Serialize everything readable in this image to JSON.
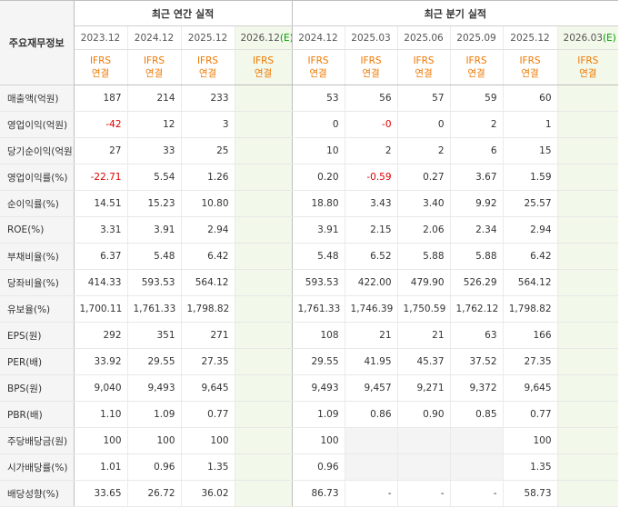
{
  "header": {
    "row_label": "주요재무정보",
    "annual_title": "최근 연간 실적",
    "quarter_title": "최근 분기 실적",
    "annual_periods": [
      "2023.12",
      "2024.12",
      "2025.12",
      "2026.12(E)"
    ],
    "quarter_periods": [
      "2024.12",
      "2025.03",
      "2025.06",
      "2025.09",
      "2025.12",
      "2026.03(E)"
    ],
    "ifrs_line1": "IFRS",
    "ifrs_line2": "연결"
  },
  "rows": [
    {
      "label": "매출액(억원)",
      "values": [
        "187",
        "214",
        "233",
        "",
        "53",
        "56",
        "57",
        "59",
        "60",
        ""
      ]
    },
    {
      "label": "영업이익(억원)",
      "values": [
        "-42",
        "12",
        "3",
        "",
        "0",
        "-0",
        "0",
        "2",
        "1",
        ""
      ]
    },
    {
      "label": "당기순이익(억원)",
      "values": [
        "27",
        "33",
        "25",
        "",
        "10",
        "2",
        "2",
        "6",
        "15",
        ""
      ]
    },
    {
      "label": "영업이익률(%)",
      "values": [
        "-22.71",
        "5.54",
        "1.26",
        "",
        "0.20",
        "-0.59",
        "0.27",
        "3.67",
        "1.59",
        ""
      ]
    },
    {
      "label": "순이익률(%)",
      "values": [
        "14.51",
        "15.23",
        "10.80",
        "",
        "18.80",
        "3.43",
        "3.40",
        "9.92",
        "25.57",
        ""
      ]
    },
    {
      "label": "ROE(%)",
      "values": [
        "3.31",
        "3.91",
        "2.94",
        "",
        "3.91",
        "2.15",
        "2.06",
        "2.34",
        "2.94",
        ""
      ]
    },
    {
      "label": "부채비율(%)",
      "values": [
        "6.37",
        "5.48",
        "6.42",
        "",
        "5.48",
        "6.52",
        "5.88",
        "5.88",
        "6.42",
        ""
      ]
    },
    {
      "label": "당좌비율(%)",
      "values": [
        "414.33",
        "593.53",
        "564.12",
        "",
        "593.53",
        "422.00",
        "479.90",
        "526.29",
        "564.12",
        ""
      ]
    },
    {
      "label": "유보율(%)",
      "values": [
        "1,700.11",
        "1,761.33",
        "1,798.82",
        "",
        "1,761.33",
        "1,746.39",
        "1,750.59",
        "1,762.12",
        "1,798.82",
        ""
      ]
    },
    {
      "label": "EPS(원)",
      "values": [
        "292",
        "351",
        "271",
        "",
        "108",
        "21",
        "21",
        "63",
        "166",
        ""
      ]
    },
    {
      "label": "PER(배)",
      "values": [
        "33.92",
        "29.55",
        "27.35",
        "",
        "29.55",
        "41.95",
        "45.37",
        "37.52",
        "27.35",
        ""
      ]
    },
    {
      "label": "BPS(원)",
      "values": [
        "9,040",
        "9,493",
        "9,645",
        "",
        "9,493",
        "9,457",
        "9,271",
        "9,372",
        "9,645",
        ""
      ]
    },
    {
      "label": "PBR(배)",
      "values": [
        "1.10",
        "1.09",
        "0.77",
        "",
        "1.09",
        "0.86",
        "0.90",
        "0.85",
        "0.77",
        ""
      ]
    },
    {
      "label": "주당배당금(원)",
      "values": [
        "100",
        "100",
        "100",
        "",
        "100",
        "",
        "",
        "",
        "100",
        ""
      ]
    },
    {
      "label": "시가배당률(%)",
      "values": [
        "1.01",
        "0.96",
        "1.35",
        "",
        "0.96",
        "",
        "",
        "",
        "1.35",
        ""
      ]
    },
    {
      "label": "배당성향(%)",
      "values": [
        "33.65",
        "26.72",
        "36.02",
        "",
        "86.73",
        "-",
        "-",
        "-",
        "58.73",
        ""
      ]
    }
  ],
  "colors": {
    "accent": "#f07800",
    "negative": "#e00000",
    "estimate": "#00a000"
  }
}
